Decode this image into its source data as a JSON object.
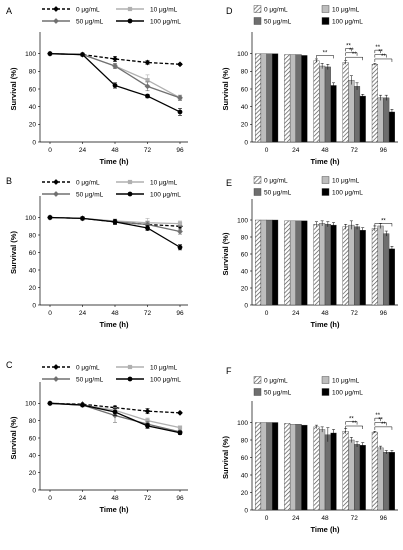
{
  "chart_data": [
    {
      "panel": "A",
      "type": "line",
      "x": [
        0,
        24,
        48,
        72,
        96
      ],
      "xlabel": "Time (h)",
      "ylabel": "Survival (%)",
      "ylim": [
        0,
        120
      ],
      "yticks": [
        0,
        20,
        40,
        60,
        80,
        100
      ],
      "legend_position": "top",
      "series": [
        {
          "name": "0 μg/mL",
          "values": [
            100,
            99,
            94,
            90,
            88
          ],
          "errors": [
            0,
            1,
            3,
            2,
            1
          ],
          "color": "#000000",
          "dashed": true,
          "marker": "diamond"
        },
        {
          "name": "10 μg/mL",
          "values": [
            100,
            99,
            86,
            70,
            50
          ],
          "errors": [
            0,
            1,
            3,
            6,
            3
          ],
          "color": "#b0b0b0",
          "dashed": false,
          "marker": "square"
        },
        {
          "name": "50 μg/mL",
          "values": [
            100,
            99,
            86,
            63,
            50
          ],
          "errors": [
            0,
            1,
            3,
            5,
            3
          ],
          "color": "#707070",
          "dashed": false,
          "marker": "diamond"
        },
        {
          "name": "100 μg/mL",
          "values": [
            100,
            99,
            64,
            52,
            34
          ],
          "errors": [
            0,
            1,
            3,
            2,
            4
          ],
          "color": "#000000",
          "dashed": false,
          "marker": "circle"
        }
      ]
    },
    {
      "panel": "B",
      "type": "line",
      "x": [
        0,
        24,
        48,
        72,
        96
      ],
      "xlabel": "Time (h)",
      "ylabel": "Survival (%)",
      "ylim": [
        0,
        120
      ],
      "yticks": [
        0,
        20,
        40,
        60,
        80,
        100
      ],
      "legend_position": "top",
      "series": [
        {
          "name": "0 μg/mL",
          "values": [
            100,
            99,
            95,
            92,
            90
          ],
          "errors": [
            0,
            1,
            2,
            3,
            3
          ],
          "color": "#000000",
          "dashed": true,
          "marker": "diamond"
        },
        {
          "name": "10 μg/mL",
          "values": [
            100,
            99,
            96,
            94,
            93
          ],
          "errors": [
            0,
            1,
            2,
            5,
            3
          ],
          "color": "#b0b0b0",
          "dashed": false,
          "marker": "square"
        },
        {
          "name": "50 μg/mL",
          "values": [
            100,
            99,
            95,
            92,
            84
          ],
          "errors": [
            0,
            1,
            3,
            3,
            3
          ],
          "color": "#707070",
          "dashed": false,
          "marker": "diamond"
        },
        {
          "name": "100 μg/mL",
          "values": [
            100,
            99,
            95,
            88,
            66
          ],
          "errors": [
            0,
            1,
            3,
            3,
            3
          ],
          "color": "#000000",
          "dashed": false,
          "marker": "circle"
        }
      ]
    },
    {
      "panel": "C",
      "type": "line",
      "x": [
        0,
        24,
        48,
        72,
        96
      ],
      "xlabel": "Time (h)",
      "ylabel": "Survival (%)",
      "ylim": [
        0,
        120
      ],
      "yticks": [
        0,
        20,
        40,
        60,
        80,
        100
      ],
      "legend_position": "top",
      "series": [
        {
          "name": "0 μg/mL",
          "values": [
            100,
            99,
            95,
            91,
            89
          ],
          "errors": [
            0,
            1,
            2,
            3,
            1
          ],
          "color": "#000000",
          "dashed": true,
          "marker": "diamond"
        },
        {
          "name": "10 μg/mL",
          "values": [
            100,
            98,
            92,
            80,
            72
          ],
          "errors": [
            0,
            1,
            3,
            3,
            2
          ],
          "color": "#b0b0b0",
          "dashed": false,
          "marker": "square"
        },
        {
          "name": "50 μg/mL",
          "values": [
            100,
            98,
            86,
            76,
            67
          ],
          "errors": [
            0,
            1,
            8,
            3,
            2
          ],
          "color": "#707070",
          "dashed": false,
          "marker": "diamond"
        },
        {
          "name": "100 μg/mL",
          "values": [
            100,
            98,
            90,
            74,
            66
          ],
          "errors": [
            0,
            1,
            4,
            3,
            2
          ],
          "color": "#000000",
          "dashed": false,
          "marker": "circle"
        }
      ]
    },
    {
      "panel": "D",
      "type": "bar",
      "categories": [
        "0",
        "24",
        "48",
        "72",
        "96"
      ],
      "xlabel": "Time (h)",
      "ylabel": "Survival (%)",
      "ylim": [
        0,
        120
      ],
      "yticks": [
        0,
        20,
        40,
        60,
        80,
        100
      ],
      "legend_position": "top",
      "significance_label": "**",
      "series": [
        {
          "name": "0 μg/mL",
          "values": [
            100,
            99,
            92,
            90,
            88
          ],
          "errors": [
            0,
            0,
            2,
            2,
            1
          ],
          "fill": "hatch"
        },
        {
          "name": "10 μg/mL",
          "values": [
            100,
            99,
            86,
            70,
            50
          ],
          "errors": [
            0,
            0,
            3,
            5,
            3
          ],
          "fill": "#bdbdbd"
        },
        {
          "name": "50 μg/mL",
          "values": [
            100,
            99,
            85,
            63,
            50
          ],
          "errors": [
            0,
            0,
            3,
            4,
            3
          ],
          "fill": "#6e6e6e"
        },
        {
          "name": "100 μg/mL",
          "values": [
            100,
            98,
            64,
            52,
            34
          ],
          "errors": [
            0,
            0,
            3,
            2,
            3
          ],
          "fill": "#000000"
        }
      ]
    },
    {
      "panel": "E",
      "type": "bar",
      "categories": [
        "0",
        "24",
        "48",
        "72",
        "96"
      ],
      "xlabel": "Time (h)",
      "ylabel": "Survival (%)",
      "ylim": [
        0,
        120
      ],
      "yticks": [
        0,
        20,
        40,
        60,
        80,
        100
      ],
      "legend_position": "top",
      "significance_label": "**",
      "series": [
        {
          "name": "0 μg/mL",
          "values": [
            100,
            99,
            95,
            92,
            90
          ],
          "errors": [
            0,
            0,
            3,
            3,
            3
          ],
          "fill": "hatch"
        },
        {
          "name": "10 μg/mL",
          "values": [
            100,
            99,
            96,
            94,
            93
          ],
          "errors": [
            0,
            0,
            3,
            5,
            3
          ],
          "fill": "#bdbdbd"
        },
        {
          "name": "50 μg/mL",
          "values": [
            100,
            99,
            95,
            92,
            84
          ],
          "errors": [
            0,
            0,
            3,
            3,
            3
          ],
          "fill": "#6e6e6e"
        },
        {
          "name": "100 μg/mL",
          "values": [
            100,
            99,
            94,
            88,
            66
          ],
          "errors": [
            0,
            0,
            3,
            3,
            3
          ],
          "fill": "#000000"
        }
      ]
    },
    {
      "panel": "F",
      "type": "bar",
      "categories": [
        "0",
        "24",
        "48",
        "72",
        "96"
      ],
      "xlabel": "Time (h)",
      "ylabel": "Survival (%)",
      "ylim": [
        0,
        120
      ],
      "yticks": [
        0,
        20,
        40,
        60,
        80,
        100
      ],
      "legend_position": "top",
      "significance_label": "**",
      "series": [
        {
          "name": "0 μg/mL",
          "values": [
            100,
            99,
            95,
            90,
            89
          ],
          "errors": [
            0,
            0,
            2,
            3,
            1
          ],
          "fill": "hatch"
        },
        {
          "name": "10 μg/mL",
          "values": [
            100,
            98,
            92,
            80,
            71
          ],
          "errors": [
            0,
            0,
            3,
            3,
            2
          ],
          "fill": "#bdbdbd"
        },
        {
          "name": "50 μg/mL",
          "values": [
            100,
            98,
            86,
            75,
            66
          ],
          "errors": [
            0,
            0,
            8,
            3,
            2
          ],
          "fill": "#6e6e6e"
        },
        {
          "name": "100 μg/mL",
          "values": [
            100,
            97,
            88,
            74,
            66
          ],
          "errors": [
            0,
            0,
            4,
            3,
            2
          ],
          "fill": "#000000"
        }
      ]
    }
  ]
}
